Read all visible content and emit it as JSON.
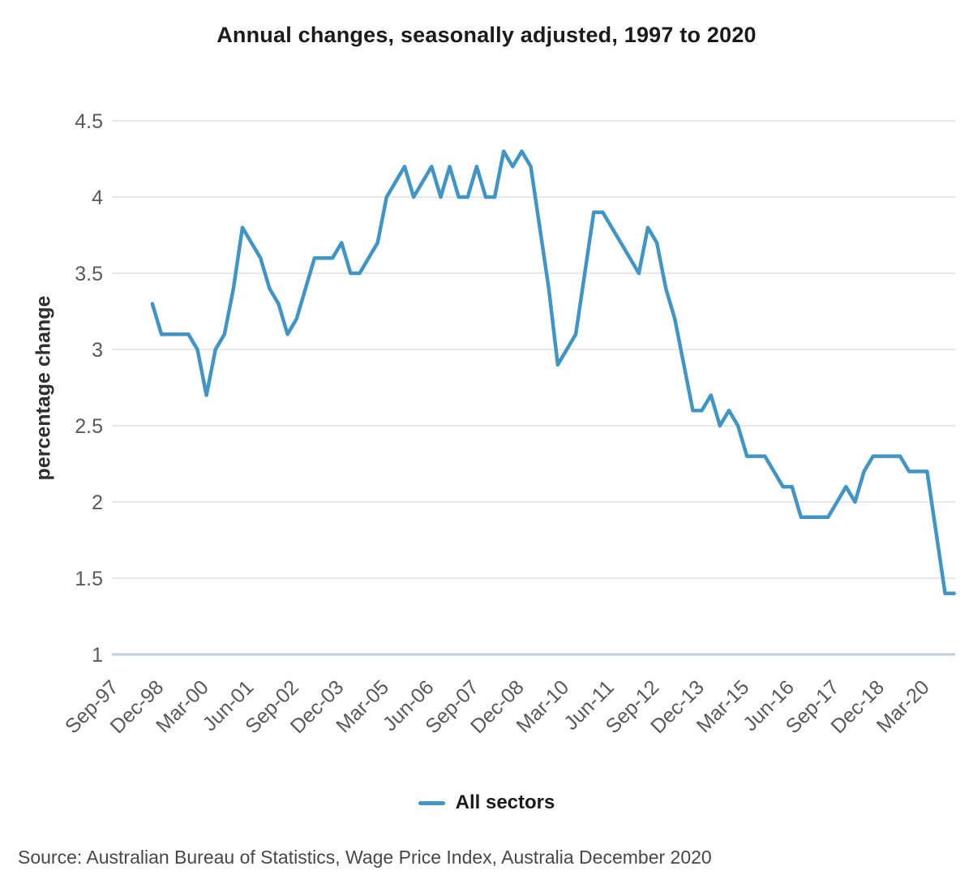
{
  "title": "Annual changes, seasonally adjusted, 1997 to 2020",
  "y_axis_title": "percentage change",
  "legend": {
    "label": "All sectors"
  },
  "source_note": "Source: Australian Bureau of Statistics, Wage Price Index, Australia December 2020",
  "colors": {
    "line": "#3F95C5",
    "grid": "#e8e8e8",
    "baseline": "#c2cde1",
    "tick_text": "#595959"
  },
  "chart_data": {
    "type": "line",
    "title": "Annual changes, seasonally adjusted, 1997 to 2020",
    "xlabel": "",
    "ylabel": "percentage change",
    "ylim": [
      1,
      4.5
    ],
    "ytick_step": 0.5,
    "grid": true,
    "legend_position": "bottom",
    "y_tick_labels": [
      "4.5",
      "4",
      "3.5",
      "3",
      "2.5",
      "2",
      "1.5",
      "1"
    ],
    "y_tick_values": [
      4.5,
      4,
      3.5,
      3,
      2.5,
      2,
      1.5,
      1
    ],
    "x_tick_labels": [
      "Sep-97",
      "Dec-98",
      "Mar-00",
      "Jun-01",
      "Sep-02",
      "Dec-03",
      "Mar-05",
      "Jun-06",
      "Sep-07",
      "Dec-08",
      "Mar-10",
      "Jun-11",
      "Sep-12",
      "Dec-13",
      "Mar-15",
      "Jun-16",
      "Sep-17",
      "Dec-18",
      "Mar-20"
    ],
    "x_tick_every_n_quarters": 5,
    "x_axis_first_quarter": "Sep-97",
    "series": [
      {
        "name": "All sectors",
        "color": "#3F95C5",
        "first_point_quarter_offset": 4,
        "x": [
          "Sep-98",
          "Dec-98",
          "Mar-99",
          "Jun-99",
          "Sep-99",
          "Dec-99",
          "Mar-00",
          "Jun-00",
          "Sep-00",
          "Dec-00",
          "Mar-01",
          "Jun-01",
          "Sep-01",
          "Dec-01",
          "Mar-02",
          "Jun-02",
          "Sep-02",
          "Dec-02",
          "Mar-03",
          "Jun-03",
          "Sep-03",
          "Dec-03",
          "Mar-04",
          "Jun-04",
          "Sep-04",
          "Dec-04",
          "Mar-05",
          "Jun-05",
          "Sep-05",
          "Dec-05",
          "Mar-06",
          "Jun-06",
          "Sep-06",
          "Dec-06",
          "Mar-07",
          "Jun-07",
          "Sep-07",
          "Dec-07",
          "Mar-08",
          "Jun-08",
          "Sep-08",
          "Dec-08",
          "Mar-09",
          "Jun-09",
          "Sep-09",
          "Dec-09",
          "Mar-10",
          "Jun-10",
          "Sep-10",
          "Dec-10",
          "Mar-11",
          "Jun-11",
          "Sep-11",
          "Dec-11",
          "Mar-12",
          "Jun-12",
          "Sep-12",
          "Dec-12",
          "Mar-13",
          "Jun-13",
          "Sep-13",
          "Dec-13",
          "Mar-14",
          "Jun-14",
          "Sep-14",
          "Dec-14",
          "Mar-15",
          "Jun-15",
          "Sep-15",
          "Dec-15",
          "Mar-16",
          "Jun-16",
          "Sep-16",
          "Dec-16",
          "Mar-17",
          "Jun-17",
          "Sep-17",
          "Dec-17",
          "Mar-18",
          "Jun-18",
          "Sep-18",
          "Dec-18",
          "Mar-19",
          "Jun-19",
          "Sep-19",
          "Dec-19",
          "Mar-20",
          "Jun-20",
          "Sep-20",
          "Dec-20"
        ],
        "values": [
          3.3,
          3.1,
          3.1,
          3.1,
          3.1,
          3.0,
          2.7,
          3.0,
          3.1,
          3.4,
          3.8,
          3.7,
          3.6,
          3.4,
          3.3,
          3.1,
          3.2,
          3.4,
          3.6,
          3.6,
          3.6,
          3.7,
          3.5,
          3.5,
          3.6,
          3.7,
          4.0,
          4.1,
          4.2,
          4.0,
          4.1,
          4.2,
          4.0,
          4.2,
          4.0,
          4.0,
          4.2,
          4.0,
          4.0,
          4.3,
          4.2,
          4.3,
          4.2,
          3.8,
          3.4,
          2.9,
          3.0,
          3.1,
          3.5,
          3.9,
          3.9,
          3.8,
          3.7,
          3.6,
          3.5,
          3.8,
          3.7,
          3.4,
          3.2,
          2.9,
          2.6,
          2.6,
          2.7,
          2.5,
          2.6,
          2.5,
          2.3,
          2.3,
          2.3,
          2.2,
          2.1,
          2.1,
          1.9,
          1.9,
          1.9,
          1.9,
          2.0,
          2.1,
          2.0,
          2.2,
          2.3,
          2.3,
          2.3,
          2.3,
          2.2,
          2.2,
          2.2,
          1.8,
          1.4,
          1.4
        ]
      }
    ]
  }
}
